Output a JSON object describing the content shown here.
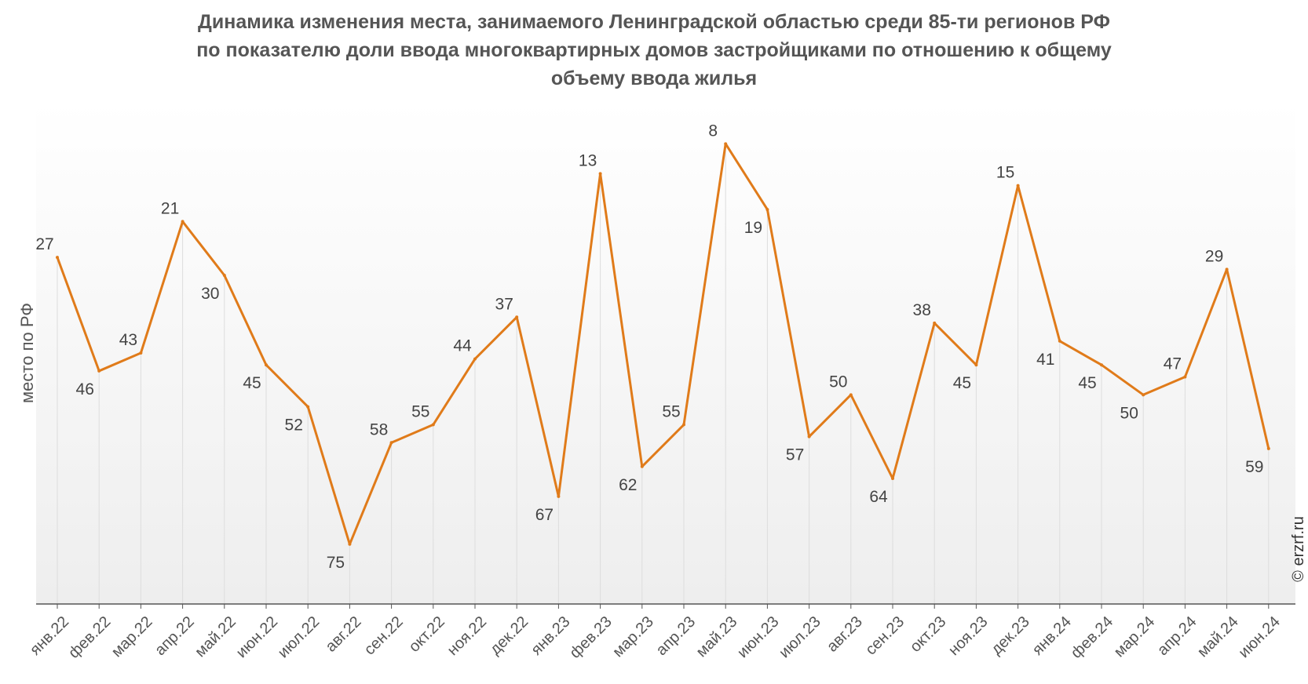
{
  "chart_data": {
    "type": "line",
    "title_lines": [
      "Динамика изменения места, занимаемого Ленинградской областью среди 85-ти регионов РФ",
      "по показателю доли ввода многоквартирных домов застройщиками по отношению к общему",
      "объему ввода жилья"
    ],
    "ylabel": "место по РФ",
    "xlabel": "",
    "y_axis_inverted": true,
    "ylim": [
      85,
      1
    ],
    "grid": "vertical",
    "categories": [
      "янв.22",
      "фев.22",
      "мар.22",
      "апр.22",
      "май.22",
      "июн.22",
      "июл.22",
      "авг.22",
      "сен.22",
      "окт.22",
      "ноя.22",
      "дек.22",
      "янв.23",
      "фев.23",
      "мар.23",
      "апр.23",
      "май.23",
      "июн.23",
      "июл.23",
      "авг.23",
      "сен.23",
      "окт.23",
      "ноя.23",
      "дек.23",
      "янв.24",
      "фев.24",
      "мар.24",
      "апр.24",
      "май.24",
      "июн.24"
    ],
    "series": [
      {
        "values": [
          27,
          46,
          43,
          21,
          30,
          45,
          52,
          75,
          58,
          55,
          44,
          37,
          67,
          13,
          62,
          55,
          8,
          19,
          57,
          50,
          64,
          38,
          45,
          15,
          41,
          45,
          50,
          47,
          29,
          59
        ],
        "color": "#e07b1a"
      }
    ],
    "watermark": "© erzrf.ru"
  }
}
